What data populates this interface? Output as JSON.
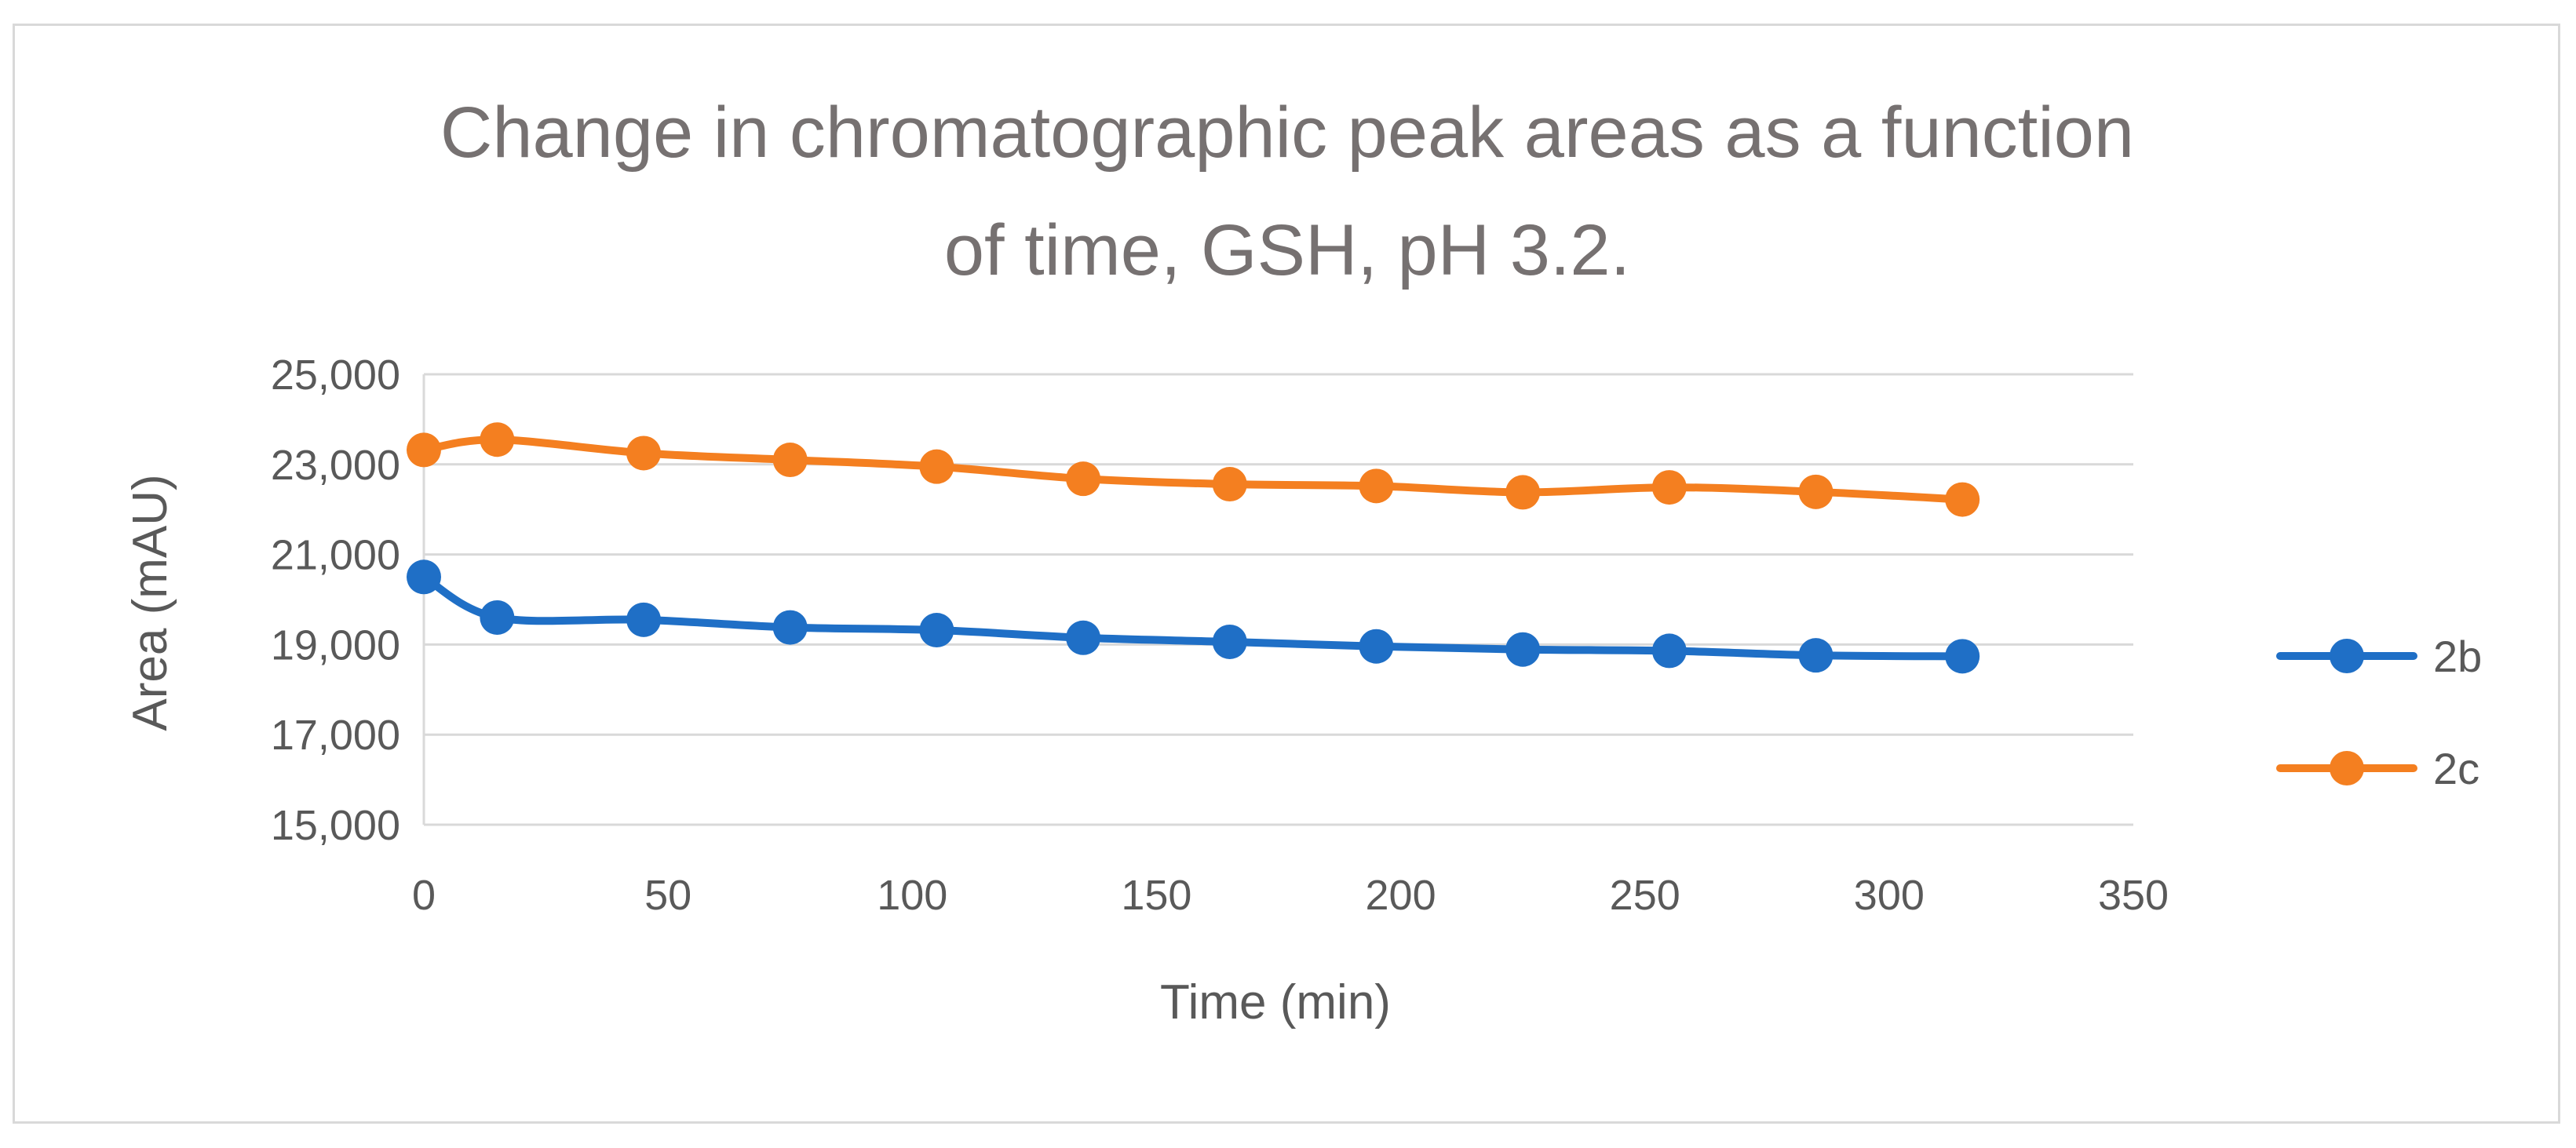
{
  "chart_data": {
    "type": "line",
    "title_lines": [
      "Change in chromatographic peak areas as a function",
      "of time, GSH, pH 3.2."
    ],
    "xlabel": "Time (min)",
    "ylabel": "Area (mAU)",
    "xlim": [
      0,
      350
    ],
    "ylim": [
      15000,
      25000
    ],
    "xticks": [
      0,
      50,
      100,
      150,
      200,
      250,
      300,
      350
    ],
    "xtick_labels": [
      "0",
      "50",
      "100",
      "150",
      "200",
      "250",
      "300",
      "350"
    ],
    "yticks": [
      15000,
      17000,
      19000,
      21000,
      23000,
      25000
    ],
    "ytick_labels": [
      "15,000",
      "17,000",
      "19,000",
      "21,000",
      "23,000",
      "25,000"
    ],
    "grid": true,
    "legend_position": "right",
    "x": [
      0,
      15,
      45,
      75,
      105,
      135,
      165,
      195,
      225,
      255,
      285,
      315
    ],
    "series": [
      {
        "name": "2b",
        "color": "#1f6fc6",
        "values": [
          20500,
          19600,
          19550,
          19380,
          19320,
          19150,
          19060,
          18960,
          18890,
          18860,
          18760,
          18740
        ]
      },
      {
        "name": "2c",
        "color": "#f47f20",
        "values": [
          23320,
          23550,
          23250,
          23100,
          22950,
          22680,
          22560,
          22520,
          22380,
          22490,
          22390,
          22220
        ]
      }
    ]
  }
}
